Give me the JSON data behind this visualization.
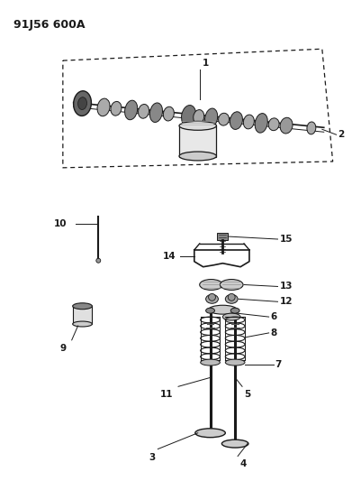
{
  "title": "91J56 600A",
  "bg_color": "#ffffff",
  "line_color": "#1a1a1a",
  "fig_width": 4.02,
  "fig_height": 5.33,
  "dpi": 100
}
